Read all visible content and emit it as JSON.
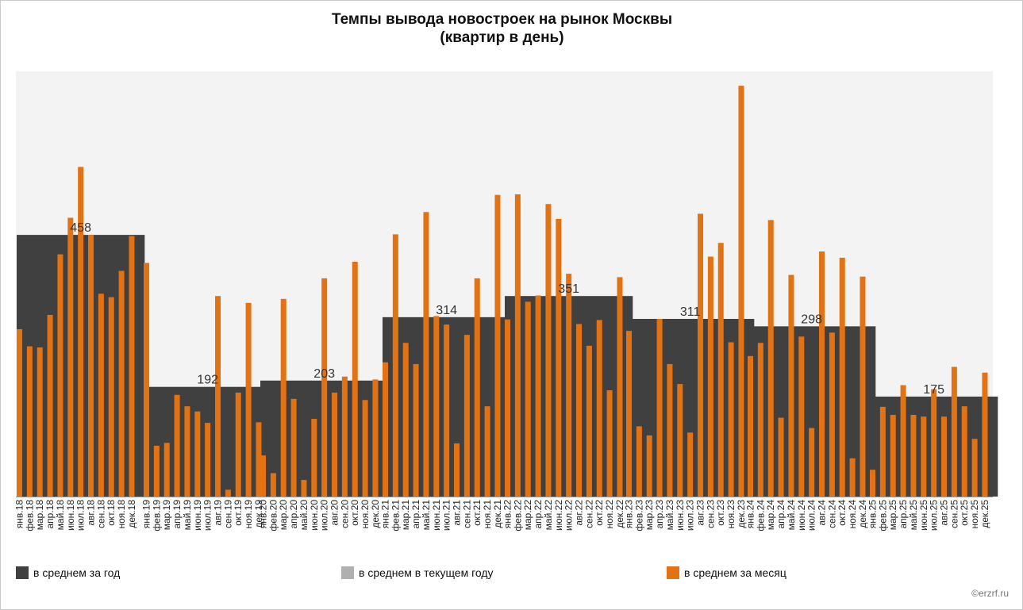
{
  "title_line1": "Темпы вывода новостроек на рынок Москвы",
  "title_line2": "(квартир в день)",
  "legend": [
    {
      "label": "в среднем за год",
      "color": "#404040"
    },
    {
      "label": "в среднем в текущем году",
      "color": "#b0b0b0"
    },
    {
      "label": "в среднем за месяц",
      "color": "#e37312"
    }
  ],
  "source": "©erzrf.ru",
  "colors": {
    "plot_bg": "#f3f3f3",
    "year_bar": "#404040",
    "month_bar": "#e37312",
    "current_year": "#b0b0b0"
  },
  "chart_data": {
    "type": "bar",
    "ylim": [
      0,
      580
    ],
    "grid": false,
    "legend_position": "bottom",
    "month_names": [
      "янв",
      "фев",
      "мар",
      "апр",
      "май",
      "июн",
      "июл",
      "авг",
      "сен",
      "окт",
      "ноя",
      "дек"
    ],
    "years": [
      {
        "year": "18",
        "average": 458,
        "average_label": "458",
        "monthly": [
          293,
          263,
          261,
          318,
          424,
          488,
          577,
          458,
          355,
          349,
          395,
          456
        ]
      },
      {
        "year": "19",
        "average": 192,
        "average_label": "192",
        "monthly": [
          409,
          89,
          94,
          178,
          158,
          149,
          129,
          351,
          12,
          182,
          339,
          130
        ]
      },
      {
        "year": "20",
        "average": 203,
        "average_label": "203",
        "monthly": [
          72,
          41,
          346,
          171,
          29,
          136,
          382,
          182,
          210,
          411,
          169,
          205
        ]
      },
      {
        "year": "21",
        "average": 314,
        "average_label": "314",
        "monthly": [
          235,
          459,
          269,
          232,
          498,
          316,
          301,
          93,
          283,
          382,
          158,
          528
        ]
      },
      {
        "year": "22",
        "average": 351,
        "average_label": "351",
        "monthly": [
          310,
          529,
          341,
          352,
          512,
          486,
          390,
          302,
          264,
          309,
          186,
          384
        ]
      },
      {
        "year": "23",
        "average": 311,
        "average_label": "311",
        "monthly": [
          290,
          123,
          107,
          311,
          232,
          197,
          112,
          495,
          420,
          444,
          270,
          719
        ]
      },
      {
        "year": "24",
        "average": 298,
        "average_label": "298",
        "monthly": [
          246,
          269,
          484,
          138,
          388,
          280,
          120,
          429,
          287,
          418,
          67,
          385
        ]
      },
      {
        "year": "25",
        "average": 175,
        "average_label": "175",
        "monthly": [
          47,
          157,
          143,
          195,
          143,
          140,
          188,
          140,
          227,
          158,
          101,
          217
        ]
      }
    ]
  }
}
